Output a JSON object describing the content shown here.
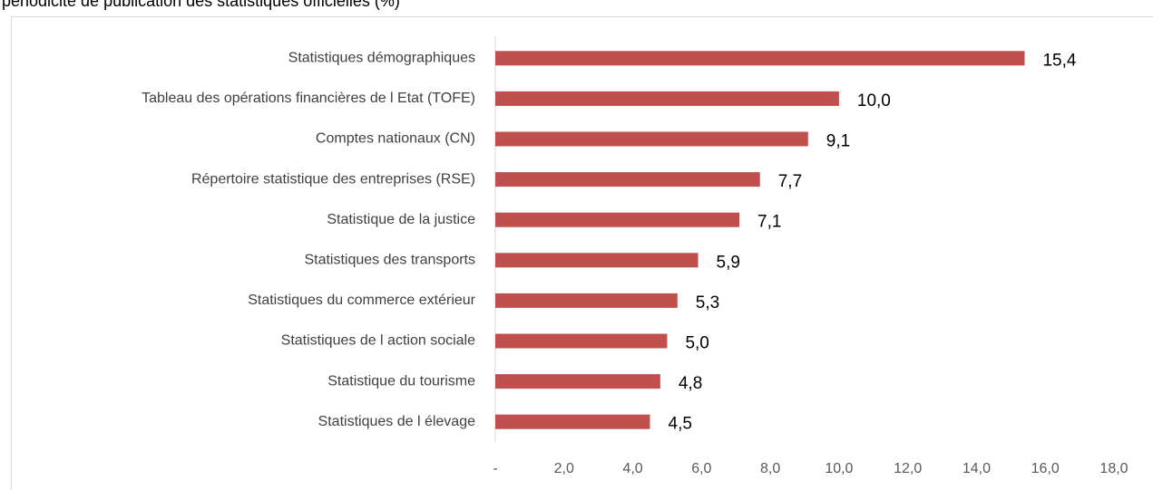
{
  "chart_data": {
    "type": "bar",
    "orientation": "horizontal",
    "title": "périodicité de publication des statistiques officielles (%)",
    "categories": [
      "Statistiques démographiques",
      "Tableau des opérations financières de l Etat (TOFE)",
      "Comptes nationaux (CN)",
      "Répertoire statistique des entreprises (RSE)",
      "Statistique de la justice",
      "Statistiques des transports",
      "Statistiques du commerce extérieur",
      "Statistiques de l action sociale",
      "Statistique du tourisme",
      "Statistiques de l élevage"
    ],
    "values": [
      15.4,
      10.0,
      9.1,
      7.7,
      7.1,
      5.9,
      5.3,
      5.0,
      4.8,
      4.5
    ],
    "value_labels": [
      "15,4",
      "10,0",
      "9,1",
      "7,7",
      "7,1",
      "5,9",
      "5,3",
      "5,0",
      "4,8",
      "4,5"
    ],
    "color": "#c0504d",
    "xlim": [
      0,
      18
    ],
    "xticks": [
      {
        "value": 0,
        "label": "-"
      },
      {
        "value": 2,
        "label": "2,0"
      },
      {
        "value": 4,
        "label": "4,0"
      },
      {
        "value": 6,
        "label": "6,0"
      },
      {
        "value": 8,
        "label": "8,0"
      },
      {
        "value": 10,
        "label": "10,0"
      },
      {
        "value": 12,
        "label": "12,0"
      },
      {
        "value": 14,
        "label": "14,0"
      },
      {
        "value": 16,
        "label": "16,0"
      },
      {
        "value": 18,
        "label": "18,0"
      }
    ],
    "grid": false
  }
}
